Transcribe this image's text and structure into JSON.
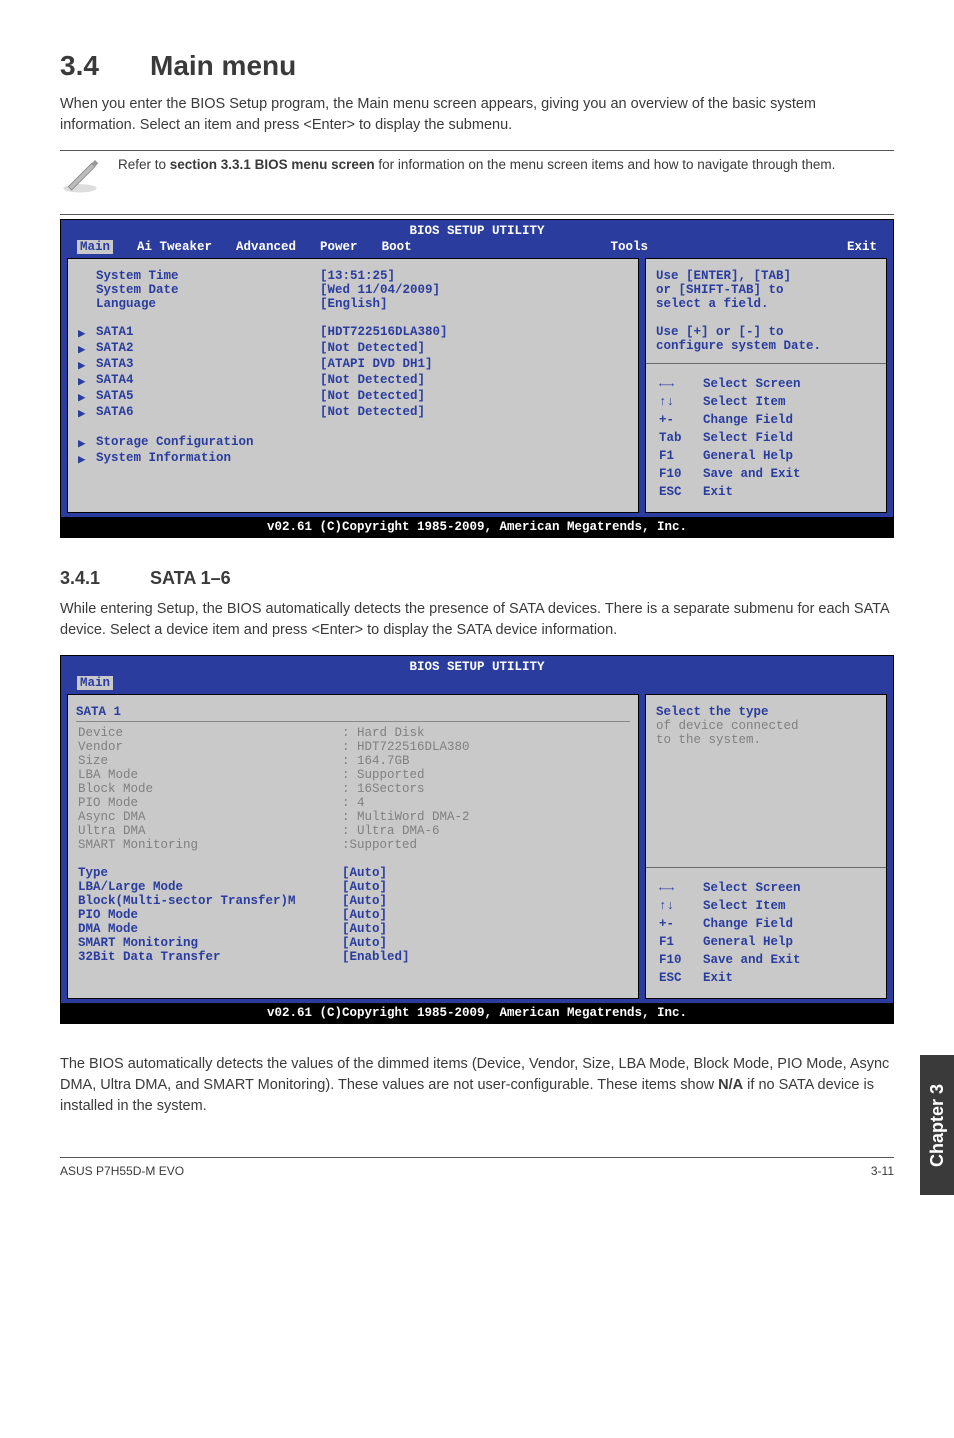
{
  "section": {
    "number": "3.4",
    "title": "Main menu"
  },
  "intro_text": "When you enter the BIOS Setup program, the Main menu screen appears, giving you an overview of the basic system information. Select an item and press <Enter> to display the submenu.",
  "note": {
    "text_prefix": "Refer to ",
    "bold": "section 3.3.1 BIOS menu screen",
    "text_suffix": " for information on the menu screen items and how to navigate through them."
  },
  "bios1": {
    "title": "BIOS SETUP UTILITY",
    "menubar": [
      "Main",
      "Ai Tweaker",
      "Advanced",
      "Power",
      "Boot",
      "Tools",
      "Exit"
    ],
    "selected_tab": 0,
    "left_rows": [
      {
        "label": "System Time",
        "value": "[13:51:25]",
        "arrow": false
      },
      {
        "label": "System Date",
        "value": "[Wed 11/04/2009]",
        "arrow": false
      },
      {
        "label": "Language",
        "value": "[English]",
        "arrow": false
      },
      {
        "spacer": true
      },
      {
        "label": "SATA1",
        "value": "[HDT722516DLA380]",
        "arrow": true
      },
      {
        "label": "SATA2",
        "value": "[Not Detected]",
        "arrow": true
      },
      {
        "label": "SATA3",
        "value": "[ATAPI DVD DH1]",
        "arrow": true
      },
      {
        "label": "SATA4",
        "value": "[Not Detected]",
        "arrow": true
      },
      {
        "label": "SATA5",
        "value": "[Not Detected]",
        "arrow": true
      },
      {
        "label": "SATA6",
        "value": "[Not Detected]",
        "arrow": true
      },
      {
        "spacer": true
      },
      {
        "label": "Storage Configuration",
        "value": "",
        "arrow": true
      },
      {
        "label": "System Information",
        "value": "",
        "arrow": true
      }
    ],
    "right_top": [
      "Use [ENTER], [TAB]",
      "or [SHIFT-TAB] to",
      "select a field.",
      "",
      "Use [+] or [-] to",
      "configure system Date."
    ],
    "right_nav": [
      {
        "k": "←→",
        "v": "Select Screen"
      },
      {
        "k": "↑↓",
        "v": "Select Item"
      },
      {
        "k": "+-",
        "v": "Change Field"
      },
      {
        "k": "Tab",
        "v": "Select Field"
      },
      {
        "k": "F1",
        "v": "General Help"
      },
      {
        "k": "F10",
        "v": "Save and Exit"
      },
      {
        "k": "ESC",
        "v": "Exit"
      }
    ],
    "copyright": "v02.61 (C)Copyright 1985-2009, American Megatrends, Inc."
  },
  "subsection": {
    "number": "3.4.1",
    "title": "SATA 1–6"
  },
  "sub_intro": "While entering Setup, the BIOS automatically detects the presence of SATA devices. There is a separate submenu for each SATA device. Select a device item and press <Enter> to display the SATA device information.",
  "bios2": {
    "title": "BIOS SETUP UTILITY",
    "menubar": [
      "Main"
    ],
    "heading": "SATA 1",
    "info_rows": [
      {
        "k": "Device",
        "v": ": Hard Disk"
      },
      {
        "k": "Vendor",
        "v": ": HDT722516DLA380"
      },
      {
        "k": "Size",
        "v": ": 164.7GB"
      },
      {
        "k": "LBA Mode",
        "v": ": Supported"
      },
      {
        "k": "Block Mode",
        "v": ": 16Sectors"
      },
      {
        "k": "PIO Mode",
        "v": ": 4"
      },
      {
        "k": "Async DMA",
        "v": ": MultiWord DMA-2"
      },
      {
        "k": "Ultra DMA",
        "v": ": Ultra DMA-6"
      },
      {
        "k": "SMART Monitoring",
        "v": ":Supported"
      }
    ],
    "cfg_rows": [
      {
        "k": "Type",
        "v": "[Auto]"
      },
      {
        "k": "LBA/Large Mode",
        "v": "[Auto]"
      },
      {
        "k": "Block(Multi-sector Transfer)M",
        "v": "[Auto]"
      },
      {
        "k": "PIO Mode",
        "v": "[Auto]"
      },
      {
        "k": "DMA Mode",
        "v": "[Auto]"
      },
      {
        "k": "SMART Monitoring",
        "v": "[Auto]"
      },
      {
        "k": "32Bit Data Transfer",
        "v": "[Enabled]"
      }
    ],
    "right_top": [
      "Select the type",
      "of device connected",
      "to the system."
    ],
    "right_nav": [
      {
        "k": "←→",
        "v": "Select Screen"
      },
      {
        "k": "↑↓",
        "v": "Select Item"
      },
      {
        "k": "+-",
        "v": "Change Field"
      },
      {
        "k": "F1",
        "v": "General Help"
      },
      {
        "k": "F10",
        "v": "Save and Exit"
      },
      {
        "k": "ESC",
        "v": "Exit"
      }
    ],
    "copyright": "v02.61 (C)Copyright 1985-2009, American Megatrends, Inc."
  },
  "post_para": {
    "pre": "The BIOS automatically detects the values of the dimmed items (Device, Vendor, Size, LBA Mode, Block Mode, PIO Mode, Async DMA, Ultra DMA, and SMART Monitoring). These values are not user-configurable. These items show ",
    "bold": "N/A",
    "post": " if no SATA device is installed in the system."
  },
  "sidebar": "Chapter 3",
  "footer_left": "ASUS P7H55D-M EVO",
  "footer_right": "3-11"
}
